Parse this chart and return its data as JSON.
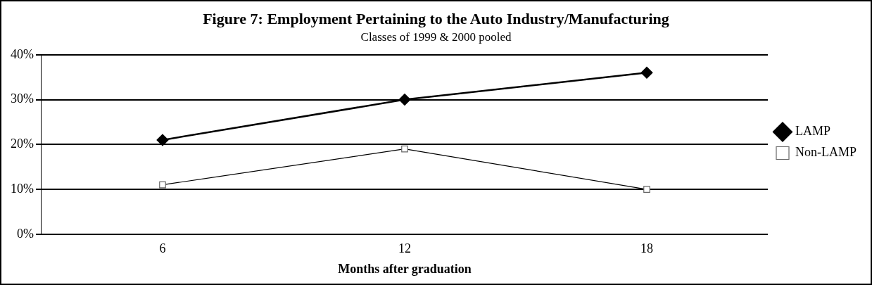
{
  "chart_data": {
    "type": "line",
    "title": "Figure 7: Employment Pertaining to the Auto Industry/Manufacturing",
    "subtitle": "Classes of 1999 & 2000 pooled",
    "xlabel": "Months after graduation",
    "categories": [
      "6",
      "12",
      "18"
    ],
    "series": [
      {
        "name": "LAMP",
        "color": "#000000",
        "values": [
          21,
          30,
          36
        ],
        "marker": "diamond"
      },
      {
        "name": "Non-LAMP",
        "color": "#000000",
        "values": [
          11,
          19,
          10
        ],
        "marker": "square"
      }
    ],
    "ylim": [
      0,
      40
    ],
    "yticks": [
      {
        "value": 0,
        "label": "0%"
      },
      {
        "value": 10,
        "label": "10%"
      },
      {
        "value": 20,
        "label": "20%"
      },
      {
        "value": 30,
        "label": "30%"
      },
      {
        "value": 40,
        "label": "40%"
      }
    ],
    "grid": "y",
    "legend": "right"
  }
}
